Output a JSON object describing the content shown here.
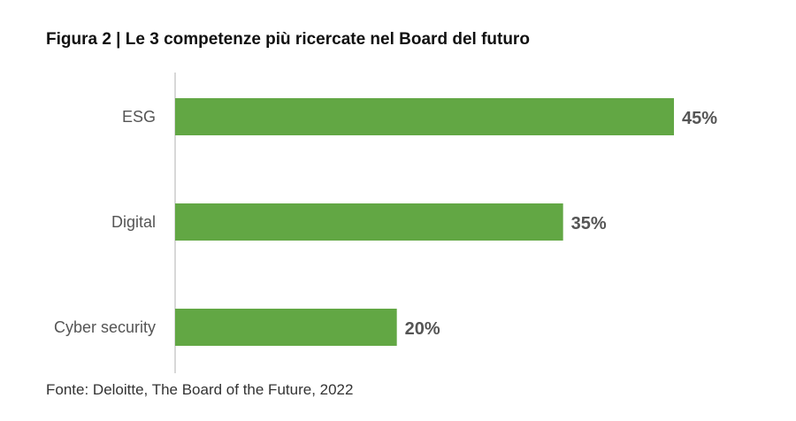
{
  "chart_data": {
    "type": "bar",
    "orientation": "horizontal",
    "title": "Figura 2 | Le 3 competenze più ricercate nel Board del futuro",
    "categories": [
      "ESG",
      "Digital",
      "Cyber security"
    ],
    "values": [
      45,
      35,
      20
    ],
    "data_labels": [
      "45%",
      "35%",
      "20%"
    ],
    "xlim": [
      0,
      50
    ],
    "grid": false,
    "bar_color": "#62a744",
    "source": "Fonte: Deloitte, The Board of the Future, 2022"
  }
}
